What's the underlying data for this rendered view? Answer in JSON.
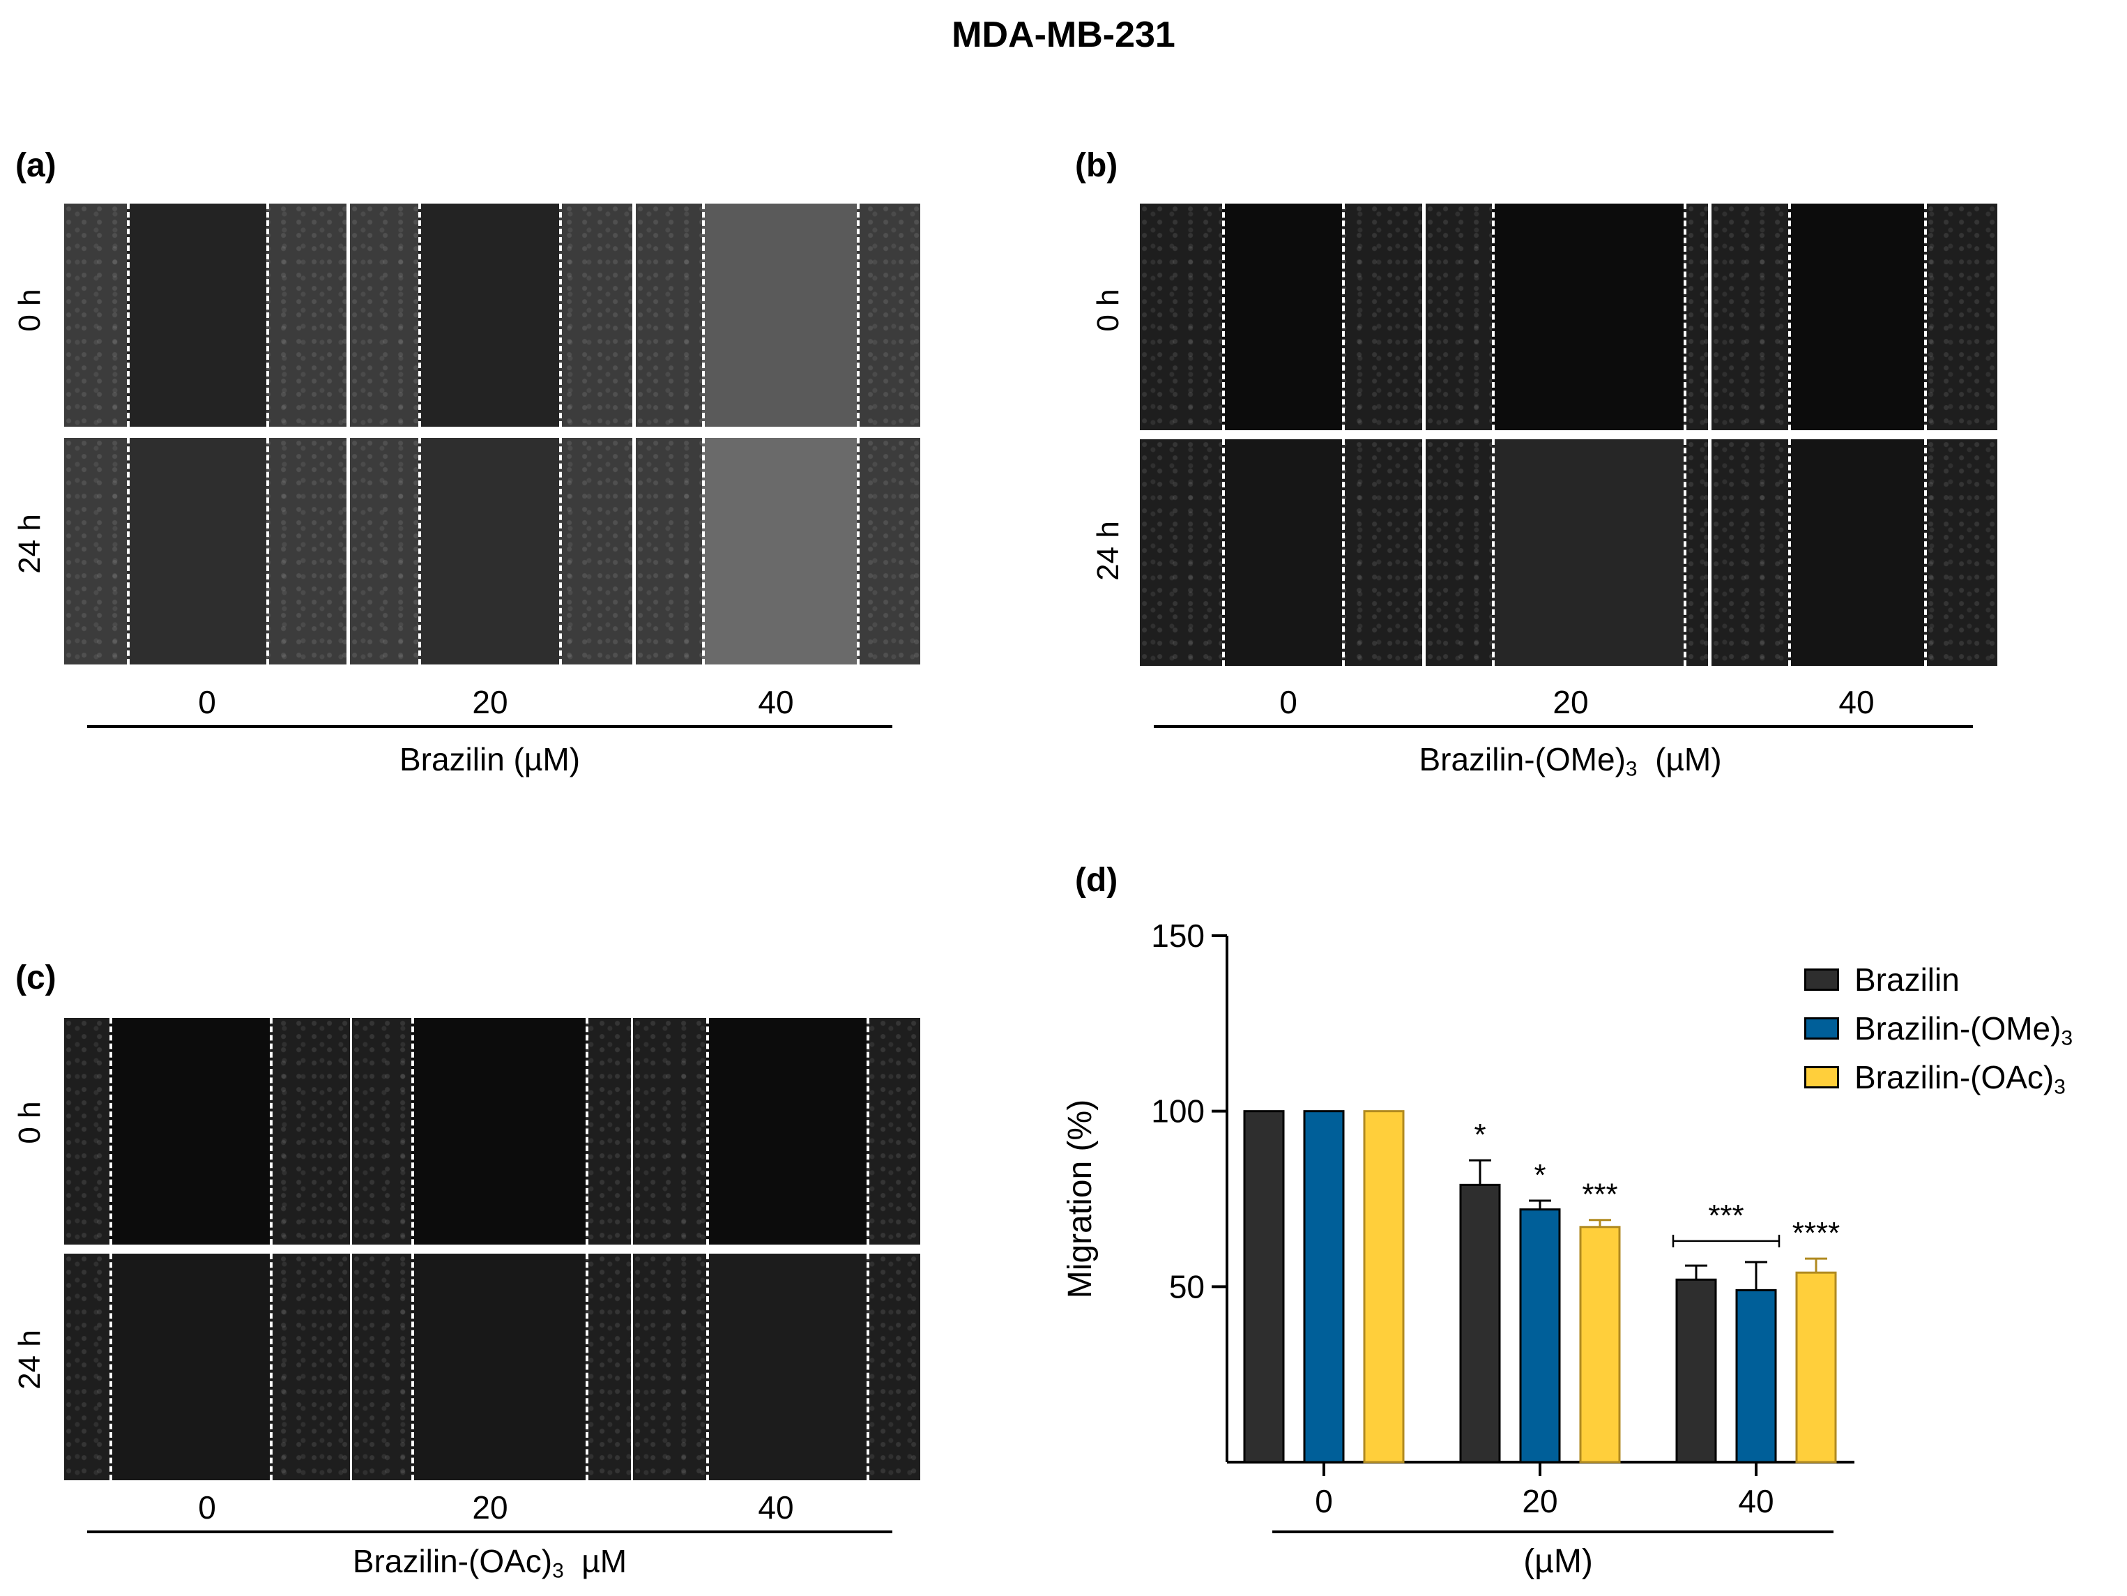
{
  "title": "MDA-MB-231",
  "panels": {
    "a": {
      "label": "(a)",
      "row_labels": [
        "0 h",
        "24 h"
      ],
      "doses": [
        "0",
        "20",
        "40"
      ],
      "xlabel": "Brazilin  (µM)"
    },
    "b": {
      "label": "(b)",
      "row_labels": [
        "0 h",
        "24 h"
      ],
      "doses": [
        "0",
        "20",
        "40"
      ],
      "xlabel_main": "Brazilin-(OMe)",
      "xlabel_sub": "3",
      "xlabel_unit": "  (µM)"
    },
    "c": {
      "label": "(c)",
      "row_labels": [
        "0 h",
        "24 h"
      ],
      "doses": [
        "0",
        "20",
        "40"
      ],
      "xlabel_main": "Brazilin-(OAc)",
      "xlabel_sub": "3",
      "xlabel_unit": "  µM"
    },
    "d": {
      "label": "(d)"
    }
  },
  "legend": [
    {
      "main": "Brazilin",
      "sub": ""
    },
    {
      "main": "Brazilin-(OMe)",
      "sub": "3"
    },
    {
      "main": "Brazilin-(OAc)",
      "sub": "3"
    }
  ],
  "chart_data": {
    "type": "bar",
    "categories": [
      "0",
      "20",
      "40"
    ],
    "xlabel": "(µM)",
    "ylabel": "Migration (%)",
    "ylim": [
      0,
      150
    ],
    "yticks": [
      "50",
      "100",
      "150"
    ],
    "series": [
      {
        "name": "Brazilin",
        "color": "#2e2e2e",
        "values": [
          100,
          79,
          52
        ],
        "errors": [
          0,
          7,
          4
        ]
      },
      {
        "name": "Brazilin-(OMe)3",
        "color": "#005f99",
        "values": [
          100,
          72,
          49
        ],
        "errors": [
          0,
          2.5,
          8
        ]
      },
      {
        "name": "Brazilin-(OAc)3",
        "color": "#ffcf3b",
        "values": [
          100,
          67,
          54
        ],
        "errors": [
          0,
          2,
          4
        ]
      }
    ],
    "significance": [
      {
        "category": "20",
        "series": "Brazilin",
        "text": "*"
      },
      {
        "category": "20",
        "series": "Brazilin-(OMe)3",
        "text": "*"
      },
      {
        "category": "20",
        "series": "Brazilin-(OAc)3",
        "text": "***"
      },
      {
        "category": "40",
        "series": "Brazilin, Brazilin-(OMe)3",
        "text": "***"
      },
      {
        "category": "40",
        "series": "Brazilin-(OAc)3",
        "text": "****"
      }
    ]
  }
}
